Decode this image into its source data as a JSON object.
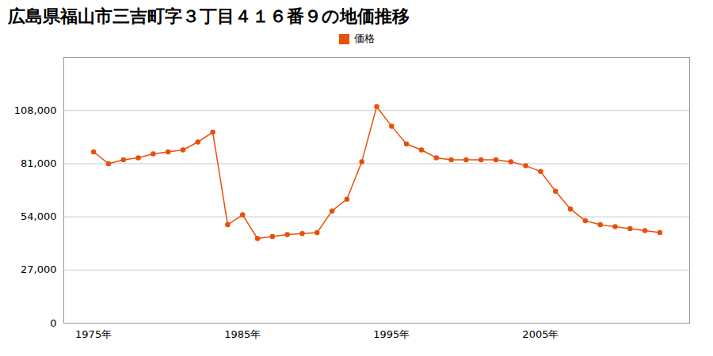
{
  "chart_data": {
    "type": "line",
    "title": "広島県福山市三吉町字３丁目４１６番９の地価推移",
    "x": [
      1975,
      1976,
      1977,
      1978,
      1979,
      1980,
      1981,
      1982,
      1983,
      1984,
      1985,
      1986,
      1987,
      1988,
      1989,
      1990,
      1991,
      1992,
      1993,
      1994,
      1995,
      1996,
      1997,
      1998,
      1999,
      2000,
      2001,
      2002,
      2003,
      2004,
      2005,
      2006,
      2007,
      2008,
      2009,
      2010,
      2011,
      2012,
      2013
    ],
    "series": [
      {
        "name": "価格",
        "color": "#e8500a",
        "marker": "circle",
        "values": [
          87000,
          81000,
          83000,
          84000,
          86000,
          87000,
          88000,
          92000,
          97000,
          50000,
          55000,
          43000,
          44000,
          45000,
          45500,
          46000,
          57000,
          63000,
          82000,
          110000,
          100000,
          91000,
          88000,
          84000,
          83000,
          83000,
          83000,
          83000,
          82000,
          80000,
          77000,
          67000,
          58000,
          52000,
          50000,
          49000,
          48000,
          47000,
          46000
        ]
      }
    ],
    "xlim": [
      1973,
      2015
    ],
    "xticks": [
      {
        "value": 1975,
        "label": "1975年"
      },
      {
        "value": 1985,
        "label": "1985年"
      },
      {
        "value": 1995,
        "label": "1995年"
      },
      {
        "value": 2005,
        "label": "2005年"
      }
    ],
    "ylim": [
      0,
      135000
    ],
    "yticks": [
      0,
      {
        "value": 27000,
        "label": "27,000"
      },
      {
        "value": 54000,
        "label": "54,000"
      },
      {
        "value": 81000,
        "label": "81,000"
      },
      {
        "value": 108000,
        "label": "108,000"
      }
    ],
    "grid": "y",
    "legend": "top"
  }
}
